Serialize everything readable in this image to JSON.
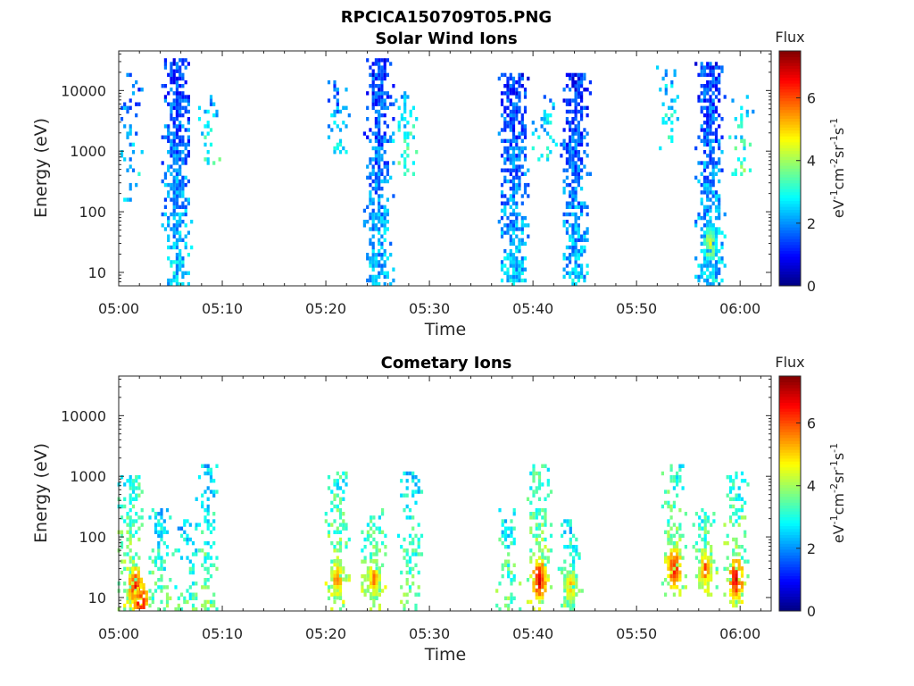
{
  "figure_title": "RPCICA150709T05.PNG",
  "chart_data": [
    {
      "type": "heatmap",
      "title": "Solar Wind Ions",
      "xlabel": "Time",
      "ylabel": "Energy (eV)",
      "yscale": "log",
      "xlim": [
        "05:00",
        "06:03"
      ],
      "ylim": [
        6,
        45000
      ],
      "xticks": [
        "05:00",
        "05:10",
        "05:20",
        "05:30",
        "05:40",
        "05:50",
        "06:00"
      ],
      "yticks": [
        "10",
        "100",
        "1000",
        "10000"
      ],
      "colorbar": {
        "label": "Flux",
        "units": "eV",
        "range": [
          0,
          7.5
        ],
        "ticks": [
          "0",
          "2",
          "4",
          "6"
        ]
      },
      "bursts": [
        {
          "t": "05:01",
          "e_min": 150,
          "e_max": 20000,
          "intensity": 1.5,
          "density": 0.35
        },
        {
          "t": "05:05.5",
          "e_min": 6,
          "e_max": 35000,
          "intensity": 1.3,
          "density": 0.85
        },
        {
          "t": "05:08.5",
          "e_min": 600,
          "e_max": 10000,
          "intensity": 2.0,
          "density": 0.4
        },
        {
          "t": "05:21",
          "e_min": 900,
          "e_max": 15000,
          "intensity": 1.5,
          "density": 0.35
        },
        {
          "t": "05:25",
          "e_min": 6,
          "e_max": 35000,
          "intensity": 1.2,
          "density": 0.85
        },
        {
          "t": "05:27.5",
          "e_min": 400,
          "e_max": 10000,
          "intensity": 2.2,
          "density": 0.4
        },
        {
          "t": "05:38",
          "e_min": 6,
          "e_max": 20000,
          "intensity": 1.2,
          "density": 0.85
        },
        {
          "t": "05:41",
          "e_min": 600,
          "e_max": 8000,
          "intensity": 2.0,
          "density": 0.35
        },
        {
          "t": "05:44",
          "e_min": 6,
          "e_max": 20000,
          "intensity": 1.2,
          "density": 0.85
        },
        {
          "t": "05:53",
          "e_min": 1000,
          "e_max": 25000,
          "intensity": 2.0,
          "density": 0.3
        },
        {
          "t": "05:57",
          "e_min": 6,
          "e_max": 30000,
          "intensity": 1.3,
          "density": 0.85
        },
        {
          "t": "06:00",
          "e_min": 400,
          "e_max": 8000,
          "intensity": 2.3,
          "density": 0.35
        }
      ],
      "hotspots": [
        {
          "t": "05:57",
          "e": 30,
          "intensity": 4.8
        }
      ]
    },
    {
      "type": "heatmap",
      "title": "Cometary Ions",
      "xlabel": "Time",
      "ylabel": "Energy (eV)",
      "yscale": "log",
      "xlim": [
        "05:00",
        "06:03"
      ],
      "ylim": [
        6,
        45000
      ],
      "xticks": [
        "05:00",
        "05:10",
        "05:20",
        "05:30",
        "05:40",
        "05:50",
        "06:00"
      ],
      "yticks": [
        "10",
        "100",
        "1000",
        "10000"
      ],
      "colorbar": {
        "label": "Flux",
        "units": "eV",
        "range": [
          0,
          7.5
        ],
        "ticks": [
          "0",
          "2",
          "4",
          "6"
        ]
      },
      "bursts": [
        {
          "t": "05:01",
          "e_min": 6,
          "e_max": 1000,
          "intensity": 3.0,
          "density": 0.6
        },
        {
          "t": "05:04",
          "e_min": 6,
          "e_max": 300,
          "intensity": 2.5,
          "density": 0.5
        },
        {
          "t": "05:06.5",
          "e_min": 6,
          "e_max": 200,
          "intensity": 2.3,
          "density": 0.5
        },
        {
          "t": "05:08.5",
          "e_min": 6,
          "e_max": 1500,
          "intensity": 2.5,
          "density": 0.45
        },
        {
          "t": "05:21",
          "e_min": 6,
          "e_max": 1200,
          "intensity": 3.0,
          "density": 0.5
        },
        {
          "t": "05:24.5",
          "e_min": 6,
          "e_max": 300,
          "intensity": 3.0,
          "density": 0.5
        },
        {
          "t": "05:28",
          "e_min": 6,
          "e_max": 1200,
          "intensity": 2.6,
          "density": 0.45
        },
        {
          "t": "05:37.5",
          "e_min": 6,
          "e_max": 300,
          "intensity": 2.6,
          "density": 0.5
        },
        {
          "t": "05:40.5",
          "e_min": 6,
          "e_max": 1500,
          "intensity": 3.0,
          "density": 0.5
        },
        {
          "t": "05:43.5",
          "e_min": 6,
          "e_max": 200,
          "intensity": 2.6,
          "density": 0.5
        },
        {
          "t": "05:53.5",
          "e_min": 10,
          "e_max": 1500,
          "intensity": 3.0,
          "density": 0.45
        },
        {
          "t": "05:56.5",
          "e_min": 10,
          "e_max": 300,
          "intensity": 3.0,
          "density": 0.45
        },
        {
          "t": "05:59.5",
          "e_min": 6,
          "e_max": 1200,
          "intensity": 3.0,
          "density": 0.5
        }
      ],
      "hotspots": [
        {
          "t": "05:01.5",
          "e": 15,
          "intensity": 6.8
        },
        {
          "t": "05:02",
          "e": 8,
          "intensity": 7.0
        },
        {
          "t": "05:21",
          "e": 20,
          "intensity": 6.0
        },
        {
          "t": "05:24.5",
          "e": 20,
          "intensity": 5.8
        },
        {
          "t": "05:40.5",
          "e": 20,
          "intensity": 7.0
        },
        {
          "t": "05:43.5",
          "e": 15,
          "intensity": 5.5
        },
        {
          "t": "05:53.5",
          "e": 30,
          "intensity": 6.8
        },
        {
          "t": "05:56.5",
          "e": 30,
          "intensity": 6.2
        },
        {
          "t": "05:59.5",
          "e": 20,
          "intensity": 7.0
        }
      ]
    }
  ]
}
